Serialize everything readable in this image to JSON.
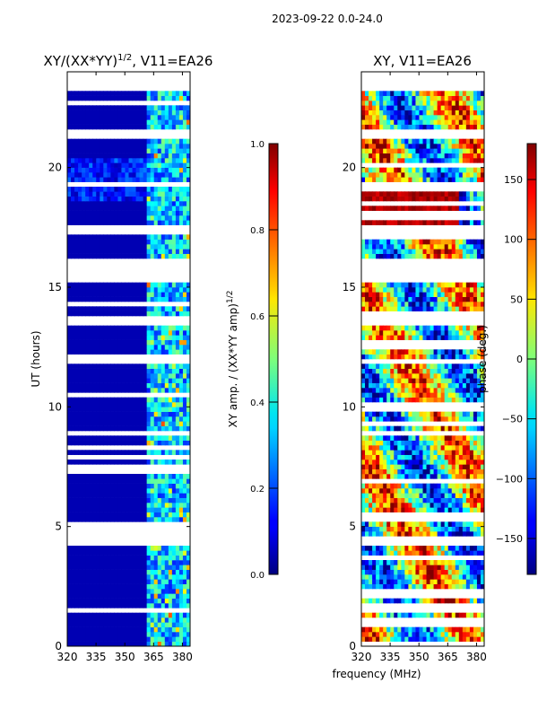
{
  "figure": {
    "suptitle": "2023-09-22 0.0-24.0"
  },
  "chart_data": [
    {
      "type": "heatmap",
      "title": "XY/(XX*YY)",
      "title_sup": "1/2",
      "title_suffix": ", V11=EA26",
      "xlabel": "",
      "ylabel": "UT (hours)",
      "xlim": [
        320,
        384
      ],
      "ylim": [
        0,
        24
      ],
      "xticks": [
        320,
        335,
        350,
        365,
        380
      ],
      "yticks": [
        0,
        5,
        10,
        15,
        20
      ],
      "colorbar": {
        "label": "XY amp. / (XX*YY amp)",
        "label_sup": "1/2",
        "range": [
          0.0,
          1.0
        ],
        "ticks": [
          "0.0",
          "0.2",
          "0.4",
          "0.6",
          "0.8",
          "1.0"
        ],
        "colormap": "jet"
      },
      "flagged_ut_bands": [
        [
          15.2,
          16.2
        ],
        [
          23.3,
          24.0
        ],
        [
          17.3,
          17.6
        ],
        [
          8.8,
          9.0
        ],
        [
          4.3,
          4.6
        ],
        [
          13.5,
          13.7
        ],
        [
          21.3,
          21.5
        ],
        [
          1.4,
          1.5
        ],
        [
          11.8,
          11.9
        ],
        [
          19.3,
          19.4
        ]
      ],
      "active_freq_band_mhz": [
        362,
        384
      ],
      "background_value": 0.05
    },
    {
      "type": "heatmap",
      "title": "XY, V11=EA26",
      "xlabel": "frequency (MHz)",
      "ylabel": "",
      "xlim": [
        320,
        384
      ],
      "ylim": [
        0,
        24
      ],
      "xticks": [
        320,
        335,
        350,
        365,
        380
      ],
      "yticks": [
        0,
        5,
        10,
        15,
        20
      ],
      "colorbar": {
        "label": "phase (deg.)",
        "range": [
          -180,
          180
        ],
        "ticks": [
          "150",
          "100",
          "50",
          "0",
          "−50",
          "−100",
          "−150"
        ],
        "tick_values": [
          150,
          100,
          50,
          0,
          -50,
          -100,
          -150
        ],
        "colormap": "jet"
      },
      "flagged_ut_bands": [
        [
          15.2,
          16.2
        ],
        [
          23.3,
          24.0
        ],
        [
          17.3,
          17.6
        ],
        [
          8.8,
          9.0
        ],
        [
          4.3,
          4.6
        ],
        [
          13.5,
          13.7
        ],
        [
          21.3,
          21.5
        ],
        [
          1.4,
          1.5
        ],
        [
          11.8,
          11.9
        ],
        [
          19.3,
          19.4
        ]
      ]
    }
  ]
}
